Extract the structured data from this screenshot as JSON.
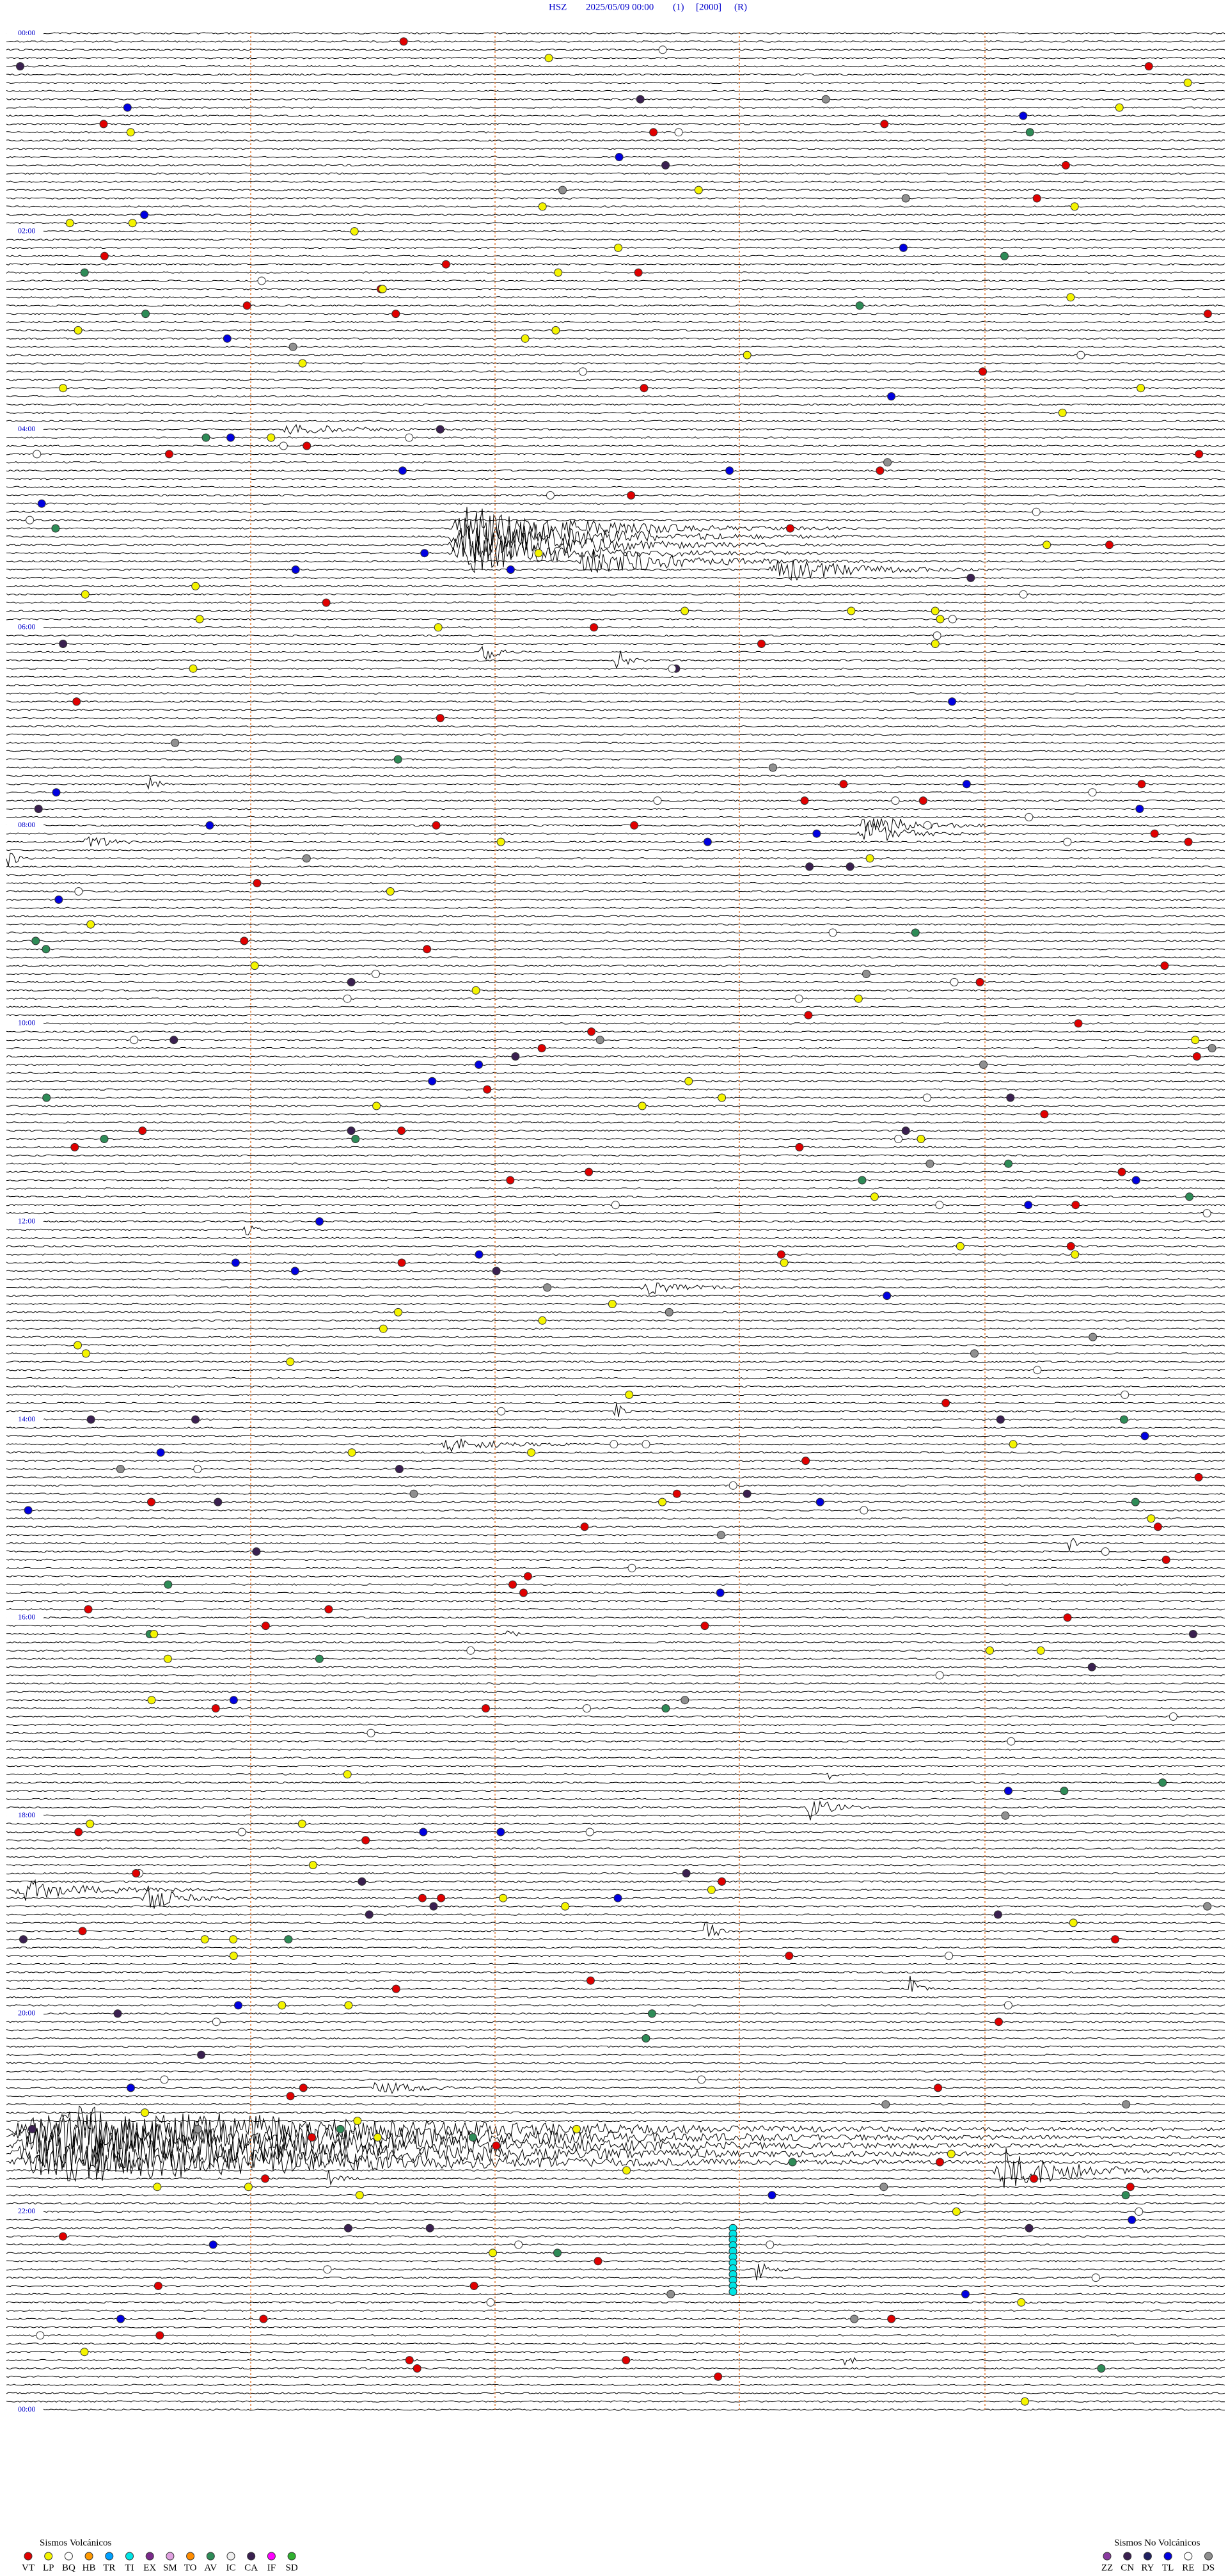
{
  "header": {
    "station": "HSZ",
    "datetime": "2025/05/09 00:00",
    "channel": "(1)",
    "gain": "[2000]",
    "mode": "(R)"
  },
  "time_labels": [
    "00:00",
    "02:00",
    "04:00",
    "06:00",
    "08:00",
    "10:00",
    "12:00",
    "14:00",
    "16:00",
    "18:00",
    "20:00",
    "22:00",
    "00:00"
  ],
  "legend_volcanic": {
    "title": "Sismos Volcánicos",
    "items": [
      {
        "code": "VT",
        "color": "#e00000"
      },
      {
        "code": "LP",
        "color": "#f4f400"
      },
      {
        "code": "BQ",
        "color": "#ffffff"
      },
      {
        "code": "HB",
        "color": "#ff9900"
      },
      {
        "code": "TR",
        "color": "#00a0ff"
      },
      {
        "code": "TI",
        "color": "#00e5e5"
      },
      {
        "code": "EX",
        "color": "#7a2a8a"
      },
      {
        "code": "SM",
        "color": "#e0a0e0"
      },
      {
        "code": "TO",
        "color": "#ff8c00"
      },
      {
        "code": "AV",
        "color": "#2e8b57"
      },
      {
        "code": "IC",
        "color": "#f0f0f0"
      },
      {
        "code": "CA",
        "color": "#3a2050"
      },
      {
        "code": "IF",
        "color": "#ff00ff"
      },
      {
        "code": "SD",
        "color": "#30b030"
      }
    ]
  },
  "legend_non_volcanic": {
    "title": "Sismos No Volcánicos",
    "items": [
      {
        "code": "ZZ",
        "color": "#8a3aa0"
      },
      {
        "code": "CN",
        "color": "#3a2050"
      },
      {
        "code": "RY",
        "color": "#202060"
      },
      {
        "code": "TL",
        "color": "#0000e0"
      },
      {
        "code": "RE",
        "color": "#ffffff"
      },
      {
        "code": "DS",
        "color": "#909090"
      }
    ]
  }
}
